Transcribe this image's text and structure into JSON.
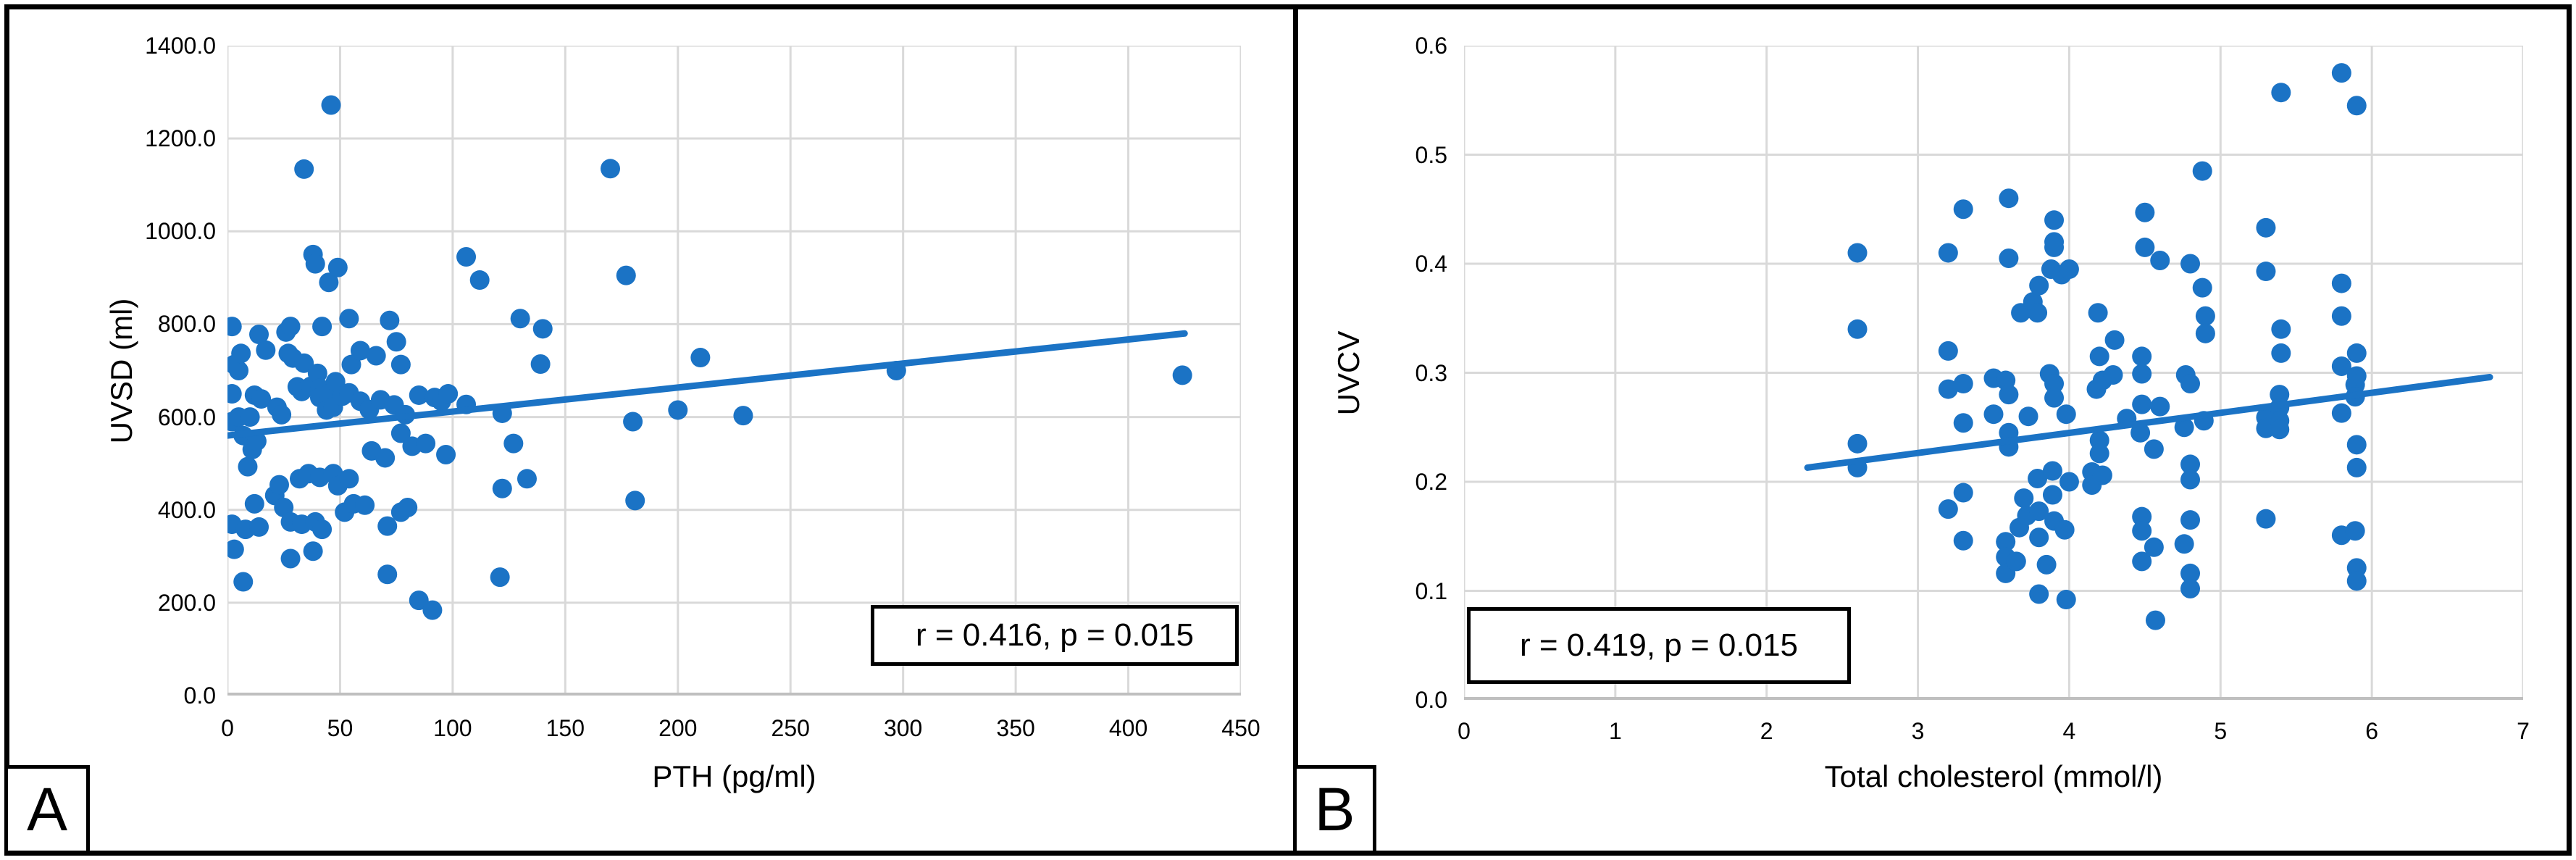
{
  "colors": {
    "dot": "#1b73c5",
    "grid": "#d9d9d9",
    "axis_line": "#bfbfbf",
    "frame": "#000000",
    "background": "#ffffff"
  },
  "chart_data": [
    {
      "type": "scatter",
      "panel_label": "A",
      "annotation": "r = 0.416, p = 0.015",
      "xlabel": "PTH (pg/ml)",
      "ylabel": "UVSD (ml)",
      "xlim": [
        0,
        450
      ],
      "ylim": [
        0,
        1400
      ],
      "grid": true,
      "legend": "none",
      "xticks": [
        {
          "v": 0,
          "label": "0"
        },
        {
          "v": 50,
          "label": "50"
        },
        {
          "v": 100,
          "label": "100"
        },
        {
          "v": 150,
          "label": "150"
        },
        {
          "v": 200,
          "label": "200"
        },
        {
          "v": 250,
          "label": "250"
        },
        {
          "v": 300,
          "label": "300"
        },
        {
          "v": 350,
          "label": "350"
        },
        {
          "v": 400,
          "label": "400"
        },
        {
          "v": 450,
          "label": "450"
        }
      ],
      "yticks": [
        {
          "v": 0,
          "label": "0.0"
        },
        {
          "v": 200,
          "label": "200.0"
        },
        {
          "v": 400,
          "label": "400.0"
        },
        {
          "v": 600,
          "label": "600.0"
        },
        {
          "v": 800,
          "label": "800.0"
        },
        {
          "v": 1000,
          "label": "1000.0"
        },
        {
          "v": 1200,
          "label": "1200.0"
        },
        {
          "v": 1400,
          "label": "1400.0"
        }
      ],
      "trendline": {
        "x1": 0,
        "y1": 560,
        "x2": 425,
        "y2": 780
      },
      "points": [
        [
          2,
          795
        ],
        [
          2,
          650
        ],
        [
          2,
          590
        ],
        [
          2,
          369
        ],
        [
          3,
          713
        ],
        [
          3,
          315
        ],
        [
          5,
          700
        ],
        [
          5,
          600
        ],
        [
          6,
          737
        ],
        [
          7,
          560
        ],
        [
          7,
          245
        ],
        [
          8,
          358
        ],
        [
          9,
          493
        ],
        [
          10,
          600
        ],
        [
          11,
          530
        ],
        [
          12,
          647
        ],
        [
          12,
          413
        ],
        [
          13,
          548
        ],
        [
          14,
          778
        ],
        [
          14,
          363
        ],
        [
          15,
          639
        ],
        [
          17,
          744
        ],
        [
          21,
          431
        ],
        [
          22,
          621
        ],
        [
          23,
          454
        ],
        [
          24,
          605
        ],
        [
          25,
          405
        ],
        [
          26,
          783
        ],
        [
          27,
          737
        ],
        [
          28,
          795
        ],
        [
          28,
          374
        ],
        [
          28,
          295
        ],
        [
          29,
          727
        ],
        [
          31,
          665
        ],
        [
          32,
          467
        ],
        [
          33,
          655
        ],
        [
          33,
          369
        ],
        [
          34,
          1134
        ],
        [
          34,
          716
        ],
        [
          36,
          478
        ],
        [
          37,
          666
        ],
        [
          38,
          950
        ],
        [
          38,
          311
        ],
        [
          39,
          930
        ],
        [
          39,
          374
        ],
        [
          40,
          694
        ],
        [
          41,
          662
        ],
        [
          41,
          642
        ],
        [
          41,
          470
        ],
        [
          42,
          795
        ],
        [
          42,
          358
        ],
        [
          44,
          615
        ],
        [
          45,
          890
        ],
        [
          45,
          650
        ],
        [
          46,
          1272
        ],
        [
          47,
          621
        ],
        [
          47,
          478
        ],
        [
          48,
          676
        ],
        [
          49,
          922
        ],
        [
          49,
          452
        ],
        [
          51,
          645
        ],
        [
          52,
          395
        ],
        [
          54,
          812
        ],
        [
          54,
          652
        ],
        [
          54,
          467
        ],
        [
          55,
          713
        ],
        [
          56,
          413
        ],
        [
          59,
          743
        ],
        [
          59,
          634
        ],
        [
          61,
          410
        ],
        [
          63,
          616
        ],
        [
          64,
          527
        ],
        [
          66,
          732
        ],
        [
          68,
          637
        ],
        [
          70,
          512
        ],
        [
          71,
          365
        ],
        [
          71,
          261
        ],
        [
          72,
          808
        ],
        [
          74,
          626
        ],
        [
          75,
          762
        ],
        [
          77,
          713
        ],
        [
          77,
          565
        ],
        [
          77,
          395
        ],
        [
          79,
          605
        ],
        [
          80,
          405
        ],
        [
          82,
          537
        ],
        [
          85,
          647
        ],
        [
          85,
          205
        ],
        [
          88,
          543
        ],
        [
          91,
          184
        ],
        [
          92,
          642
        ],
        [
          95,
          634
        ],
        [
          97,
          519
        ],
        [
          98,
          650
        ],
        [
          106,
          945
        ],
        [
          106,
          627
        ],
        [
          112,
          895
        ],
        [
          121,
          255
        ],
        [
          122,
          608
        ],
        [
          122,
          446
        ],
        [
          127,
          543
        ],
        [
          130,
          812
        ],
        [
          133,
          467
        ],
        [
          139,
          714
        ],
        [
          140,
          790
        ],
        [
          170,
          1135
        ],
        [
          177,
          905
        ],
        [
          180,
          590
        ],
        [
          181,
          420
        ],
        [
          200,
          615
        ],
        [
          210,
          728
        ],
        [
          229,
          603
        ],
        [
          297,
          700
        ],
        [
          424,
          690
        ]
      ]
    },
    {
      "type": "scatter",
      "panel_label": "B",
      "annotation": "r = 0.419, p = 0.015",
      "xlabel": "Total cholesterol (mmol/l)",
      "ylabel": "UVCV",
      "xlim": [
        0,
        7
      ],
      "ylim": [
        0,
        0.6
      ],
      "grid": true,
      "legend": "none",
      "xticks": [
        {
          "v": 0,
          "label": "0"
        },
        {
          "v": 1,
          "label": "1"
        },
        {
          "v": 2,
          "label": "2"
        },
        {
          "v": 3,
          "label": "3"
        },
        {
          "v": 4,
          "label": "4"
        },
        {
          "v": 5,
          "label": "5"
        },
        {
          "v": 6,
          "label": "6"
        },
        {
          "v": 7,
          "label": "7"
        }
      ],
      "yticks": [
        {
          "v": 0.0,
          "label": "0.0"
        },
        {
          "v": 0.1,
          "label": "0.1"
        },
        {
          "v": 0.2,
          "label": "0.2"
        },
        {
          "v": 0.3,
          "label": "0.3"
        },
        {
          "v": 0.4,
          "label": "0.4"
        },
        {
          "v": 0.5,
          "label": "0.5"
        },
        {
          "v": 0.6,
          "label": "0.6"
        }
      ],
      "trendline": {
        "x1": 2.27,
        "y1": 0.213,
        "x2": 6.78,
        "y2": 0.296
      },
      "points": [
        [
          2.6,
          0.41
        ],
        [
          2.6,
          0.34
        ],
        [
          2.6,
          0.235
        ],
        [
          2.6,
          0.213
        ],
        [
          3.2,
          0.41
        ],
        [
          3.2,
          0.32
        ],
        [
          3.2,
          0.285
        ],
        [
          3.2,
          0.175
        ],
        [
          3.3,
          0.45
        ],
        [
          3.3,
          0.29
        ],
        [
          3.3,
          0.254
        ],
        [
          3.3,
          0.19
        ],
        [
          3.3,
          0.146
        ],
        [
          3.5,
          0.295
        ],
        [
          3.5,
          0.262
        ],
        [
          3.58,
          0.293
        ],
        [
          3.58,
          0.145
        ],
        [
          3.58,
          0.131
        ],
        [
          3.58,
          0.116
        ],
        [
          3.6,
          0.46
        ],
        [
          3.6,
          0.405
        ],
        [
          3.6,
          0.28
        ],
        [
          3.6,
          0.245
        ],
        [
          3.6,
          0.232
        ],
        [
          3.65,
          0.127
        ],
        [
          3.67,
          0.158
        ],
        [
          3.68,
          0.355
        ],
        [
          3.7,
          0.185
        ],
        [
          3.72,
          0.169
        ],
        [
          3.73,
          0.26
        ],
        [
          3.76,
          0.365
        ],
        [
          3.79,
          0.355
        ],
        [
          3.79,
          0.203
        ],
        [
          3.8,
          0.38
        ],
        [
          3.8,
          0.173
        ],
        [
          3.8,
          0.149
        ],
        [
          3.8,
          0.097
        ],
        [
          3.85,
          0.124
        ],
        [
          3.87,
          0.299
        ],
        [
          3.88,
          0.395
        ],
        [
          3.89,
          0.21
        ],
        [
          3.89,
          0.188
        ],
        [
          3.9,
          0.44
        ],
        [
          3.9,
          0.42
        ],
        [
          3.9,
          0.415
        ],
        [
          3.9,
          0.29
        ],
        [
          3.9,
          0.277
        ],
        [
          3.9,
          0.164
        ],
        [
          3.95,
          0.39
        ],
        [
          3.97,
          0.156
        ],
        [
          3.98,
          0.262
        ],
        [
          3.98,
          0.092
        ],
        [
          4.0,
          0.395
        ],
        [
          4.0,
          0.2
        ],
        [
          4.15,
          0.209
        ],
        [
          4.15,
          0.197
        ],
        [
          4.18,
          0.285
        ],
        [
          4.19,
          0.355
        ],
        [
          4.2,
          0.315
        ],
        [
          4.2,
          0.238
        ],
        [
          4.2,
          0.226
        ],
        [
          4.22,
          0.293
        ],
        [
          4.22,
          0.206
        ],
        [
          4.29,
          0.298
        ],
        [
          4.3,
          0.33
        ],
        [
          4.38,
          0.258
        ],
        [
          4.47,
          0.245
        ],
        [
          4.48,
          0.315
        ],
        [
          4.48,
          0.299
        ],
        [
          4.48,
          0.271
        ],
        [
          4.48,
          0.168
        ],
        [
          4.48,
          0.155
        ],
        [
          4.48,
          0.127
        ],
        [
          4.5,
          0.447
        ],
        [
          4.5,
          0.415
        ],
        [
          4.56,
          0.23
        ],
        [
          4.56,
          0.14
        ],
        [
          4.57,
          0.073
        ],
        [
          4.6,
          0.403
        ],
        [
          4.6,
          0.269
        ],
        [
          4.76,
          0.25
        ],
        [
          4.76,
          0.143
        ],
        [
          4.77,
          0.298
        ],
        [
          4.8,
          0.4
        ],
        [
          4.8,
          0.29
        ],
        [
          4.8,
          0.216
        ],
        [
          4.8,
          0.202
        ],
        [
          4.8,
          0.165
        ],
        [
          4.8,
          0.116
        ],
        [
          4.8,
          0.102
        ],
        [
          4.88,
          0.485
        ],
        [
          4.88,
          0.378
        ],
        [
          4.89,
          0.256
        ],
        [
          4.9,
          0.352
        ],
        [
          4.9,
          0.336
        ],
        [
          5.3,
          0.433
        ],
        [
          5.3,
          0.393
        ],
        [
          5.3,
          0.259
        ],
        [
          5.3,
          0.249
        ],
        [
          5.3,
          0.166
        ],
        [
          5.39,
          0.28
        ],
        [
          5.39,
          0.268
        ],
        [
          5.39,
          0.256
        ],
        [
          5.39,
          0.248
        ],
        [
          5.4,
          0.557
        ],
        [
          5.4,
          0.34
        ],
        [
          5.4,
          0.318
        ],
        [
          5.8,
          0.575
        ],
        [
          5.8,
          0.382
        ],
        [
          5.8,
          0.352
        ],
        [
          5.8,
          0.306
        ],
        [
          5.8,
          0.263
        ],
        [
          5.8,
          0.151
        ],
        [
          5.89,
          0.289
        ],
        [
          5.89,
          0.278
        ],
        [
          5.89,
          0.155
        ],
        [
          5.9,
          0.545
        ],
        [
          5.9,
          0.318
        ],
        [
          5.9,
          0.297
        ],
        [
          5.9,
          0.234
        ],
        [
          5.9,
          0.213
        ],
        [
          5.9,
          0.121
        ],
        [
          5.9,
          0.109
        ]
      ]
    }
  ]
}
